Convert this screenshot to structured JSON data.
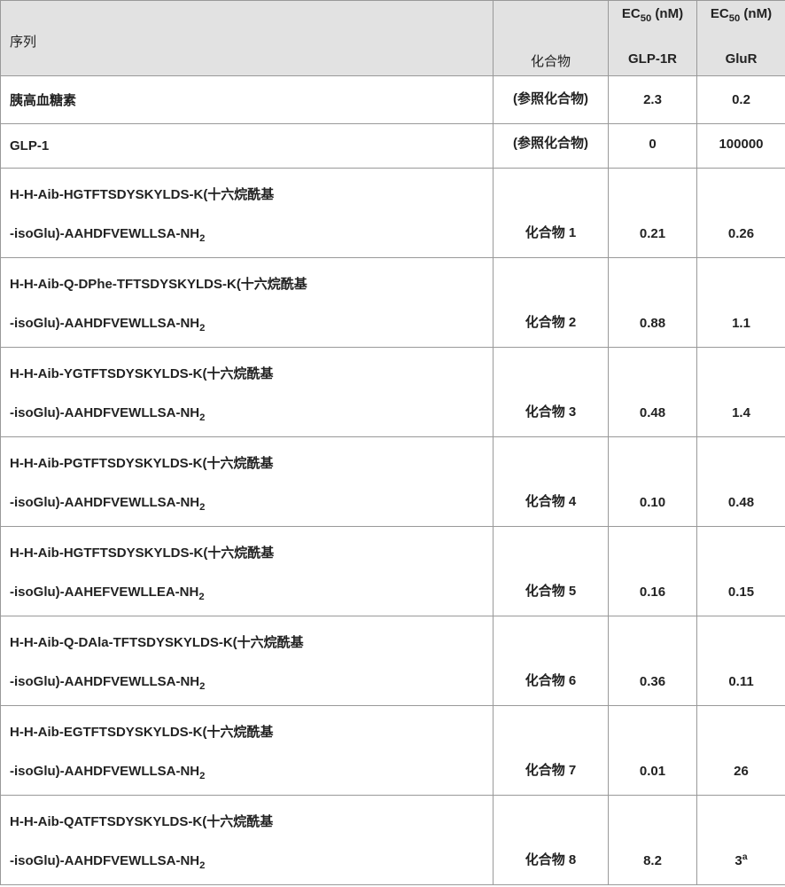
{
  "header": {
    "seq_label": "序列",
    "compound_label": "化合物",
    "ec50_label_html": "EC<sub>50</sub> (nM)",
    "col3_sub": "GLP-1R",
    "col4_sub": "GluR"
  },
  "rows": [
    {
      "seq_single_cn": "胰高血糖素",
      "compound": "(参照化合物)",
      "glp1r": "2.3",
      "glur": "0.2"
    },
    {
      "seq_single_arial": "GLP-1",
      "compound": "(参照化合物)",
      "glp1r": "0",
      "glur": "100000"
    },
    {
      "seq_line1_html": "H-H-Aib-HGTFTSDYSKYLDS-K(十六烷酰基",
      "seq_line2_html": "-isoGlu)-AAHDFVEWLLSA-NH<sub>2</sub>",
      "compound": "化合物 1",
      "glp1r": "0.21",
      "glur": "0.26"
    },
    {
      "seq_line1_html": "H-H-Aib-Q-DPhe-TFTSDYSKYLDS-K(十六烷酰基",
      "seq_line2_html": "-isoGlu)-AAHDFVEWLLSA-NH<sub>2</sub>",
      "compound": "化合物 2",
      "glp1r": "0.88",
      "glur": "1.1"
    },
    {
      "seq_line1_html": "H-H-Aib-YGTFTSDYSKYLDS-K(十六烷酰基",
      "seq_line2_html": "-isoGlu)-AAHDFVEWLLSA-NH<sub>2</sub>",
      "compound": "化合物 3",
      "glp1r": "0.48",
      "glur": "1.4"
    },
    {
      "seq_line1_html": "H-H-Aib-PGTFTSDYSKYLDS-K(十六烷酰基",
      "seq_line2_html": "-isoGlu)-AAHDFVEWLLSA-NH<sub>2</sub>",
      "compound": "化合物 4",
      "glp1r": "0.10",
      "glur": "0.48"
    },
    {
      "seq_line1_html": "H-H-Aib-HGTFTSDYSKYLDS-K(十六烷酰基",
      "seq_line2_html": "-isoGlu)-AAHEFVEWLLEA-NH<sub>2</sub>",
      "compound": "化合物 5",
      "glp1r": "0.16",
      "glur": "0.15"
    },
    {
      "seq_line1_html": "H-H-Aib-Q-DAla-TFTSDYSKYLDS-K(十六烷酰基",
      "seq_line2_html": "-isoGlu)-AAHDFVEWLLSA-NH<sub>2</sub>",
      "compound": "化合物 6",
      "glp1r": "0.36",
      "glur": "0.11"
    },
    {
      "seq_line1_html": "H-H-Aib-EGTFTSDYSKYLDS-K(十六烷酰基",
      "seq_line2_html": "-isoGlu)-AAHDFVEWLLSA-NH<sub>2</sub>",
      "compound": "化合物 7",
      "glp1r": "0.01",
      "glur": "26"
    },
    {
      "seq_line1_html": "H-H-Aib-QATFTSDYSKYLDS-K(十六烷酰基",
      "seq_line2_html": "-isoGlu)-AAHDFVEWLLSA-NH<sub>2</sub>",
      "compound": "化合物 8",
      "glp1r": "8.2",
      "glur_html": "3<sup>a</sup>"
    }
  ]
}
